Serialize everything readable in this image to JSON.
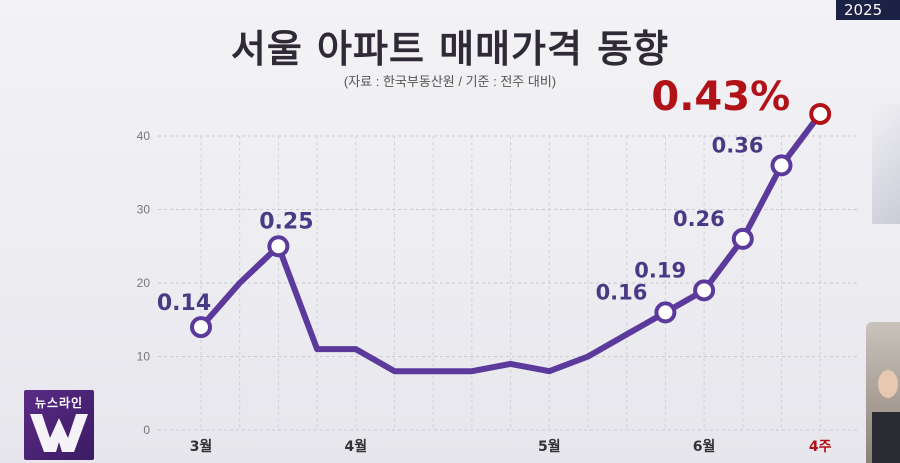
{
  "badge": {
    "text": "2025"
  },
  "header": {
    "title": "서울 아파트 매매가격 동향",
    "subtitle": "(자료 : 한국부동산원 / 기준 : 전주 대비)"
  },
  "logo": {
    "label": "뉴스라인",
    "letter": "W"
  },
  "chart_data": {
    "type": "line",
    "title": "서울 아파트 매매가격 동향",
    "subtitle": "(자료 : 한국부동산원 / 기준 : 전주 대비)",
    "yticks": [
      0,
      10,
      20,
      30,
      40
    ],
    "ylim": [
      0,
      43
    ],
    "x_ticks": [
      {
        "label": "3월",
        "week": 0,
        "highlight": false
      },
      {
        "label": "4월",
        "week": 4,
        "highlight": false
      },
      {
        "label": "5월",
        "week": 9,
        "highlight": false
      },
      {
        "label": "6월",
        "week": 13,
        "highlight": false
      },
      {
        "label": "4주",
        "week": 16,
        "highlight": true
      }
    ],
    "gridlines": true,
    "colors": {
      "line": "#5b3a9c",
      "label": "#4a3a86",
      "highlight": "#b01217"
    },
    "series": [
      {
        "values": [
          14,
          20,
          25,
          11,
          11,
          8,
          8,
          8,
          9,
          8,
          10,
          13,
          16,
          19,
          26,
          36,
          43
        ]
      }
    ],
    "data_labels": [
      {
        "index": 0,
        "text": "0.14",
        "highlight": false
      },
      {
        "index": 2,
        "text": "0.25",
        "highlight": false
      },
      {
        "index": 12,
        "text": "0.16",
        "highlight": false
      },
      {
        "index": 13,
        "text": "0.19",
        "highlight": false
      },
      {
        "index": 14,
        "text": "0.26",
        "highlight": false
      },
      {
        "index": 15,
        "text": "0.36",
        "highlight": false
      },
      {
        "index": 16,
        "text": "0.43%",
        "highlight": true
      }
    ]
  }
}
